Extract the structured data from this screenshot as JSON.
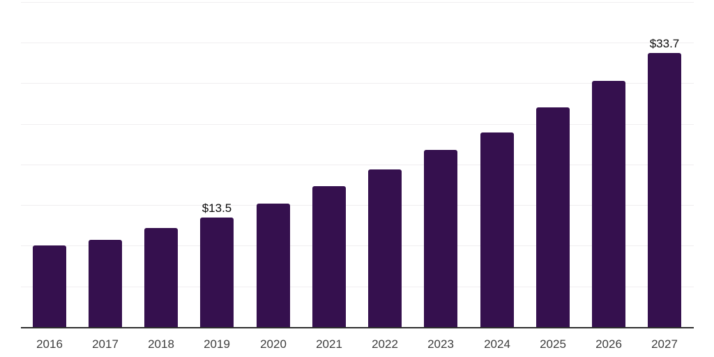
{
  "chart_data": {
    "type": "bar",
    "title": "",
    "xlabel": "",
    "ylabel": "",
    "categories": [
      "2016",
      "2017",
      "2018",
      "2019",
      "2020",
      "2021",
      "2022",
      "2023",
      "2024",
      "2025",
      "2026",
      "2027"
    ],
    "values": [
      10.0,
      10.7,
      12.2,
      13.5,
      15.2,
      17.3,
      19.4,
      21.8,
      23.9,
      27.0,
      30.3,
      33.7
    ],
    "data_labels": {
      "2019": "$13.5",
      "2027": "$33.7"
    },
    "ylim": [
      0,
      40.2
    ],
    "gridline_values": [
      5,
      10,
      15,
      20,
      25,
      30,
      35,
      40
    ],
    "grid": "horizontal-only",
    "legend": "none",
    "y_axis_ticks_visible": false,
    "colors": {
      "bar": "#35104e",
      "gridline": "#f0eef0",
      "axis_line": "#2e2e2e",
      "tick_label": "#3d3d3d",
      "value_label": "#0a0a0a",
      "background": "#ffffff"
    }
  }
}
